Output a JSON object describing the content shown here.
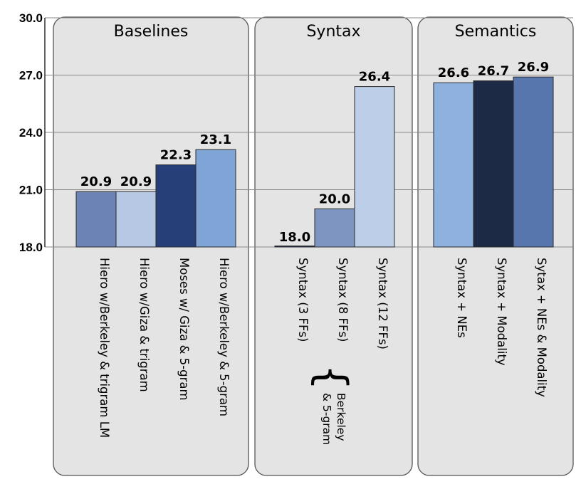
{
  "chart_data": {
    "type": "bar",
    "ylim": [
      18.0,
      30.0
    ],
    "yticks": [
      "18.0",
      "21.0",
      "24.0",
      "27.0",
      "30.0"
    ],
    "grid": true,
    "groups": [
      {
        "title": "Baselines",
        "bars": [
          {
            "label": "Hiero w/Berkeley & trigram LM",
            "value": 20.9,
            "value_label": "20.9",
            "color": "#6b83b5"
          },
          {
            "label": "Hiero w/Giza  & trigram",
            "value": 20.9,
            "value_label": "20.9",
            "color": "#b6c8e3"
          },
          {
            "label": "Moses w/ Giza & 5-gram",
            "value": 22.3,
            "value_label": "22.3",
            "color": "#273f78"
          },
          {
            "label": "Hiero w/Berkeley & 5-gram",
            "value": 23.1,
            "value_label": "23.1",
            "color": "#7ea5d6"
          }
        ]
      },
      {
        "title": "Syntax",
        "bars": [
          {
            "label": "Syntax (3 FFs)",
            "value": 18.0,
            "value_label": "18.0",
            "color": "#1f2f55"
          },
          {
            "label": "Syntax (8 FFs)",
            "value": 20.0,
            "value_label": "20.0",
            "color": "#7f95c1"
          },
          {
            "label": "Syntax (12 FFs)",
            "value": 26.4,
            "value_label": "26.4",
            "color": "#bccee8"
          }
        ],
        "note": [
          "Berkeley",
          "& 5-gram"
        ]
      },
      {
        "title": "Semantics",
        "bars": [
          {
            "label": "Syntax + NEs",
            "value": 26.6,
            "value_label": "26.6",
            "color": "#8fb1df"
          },
          {
            "label": "Syntax + Modality",
            "value": 26.7,
            "value_label": "26.7",
            "color": "#1c2a46"
          },
          {
            "label": "Sytax + NEs & Modality",
            "value": 26.9,
            "value_label": "26.9",
            "color": "#5676ad"
          }
        ]
      }
    ]
  }
}
